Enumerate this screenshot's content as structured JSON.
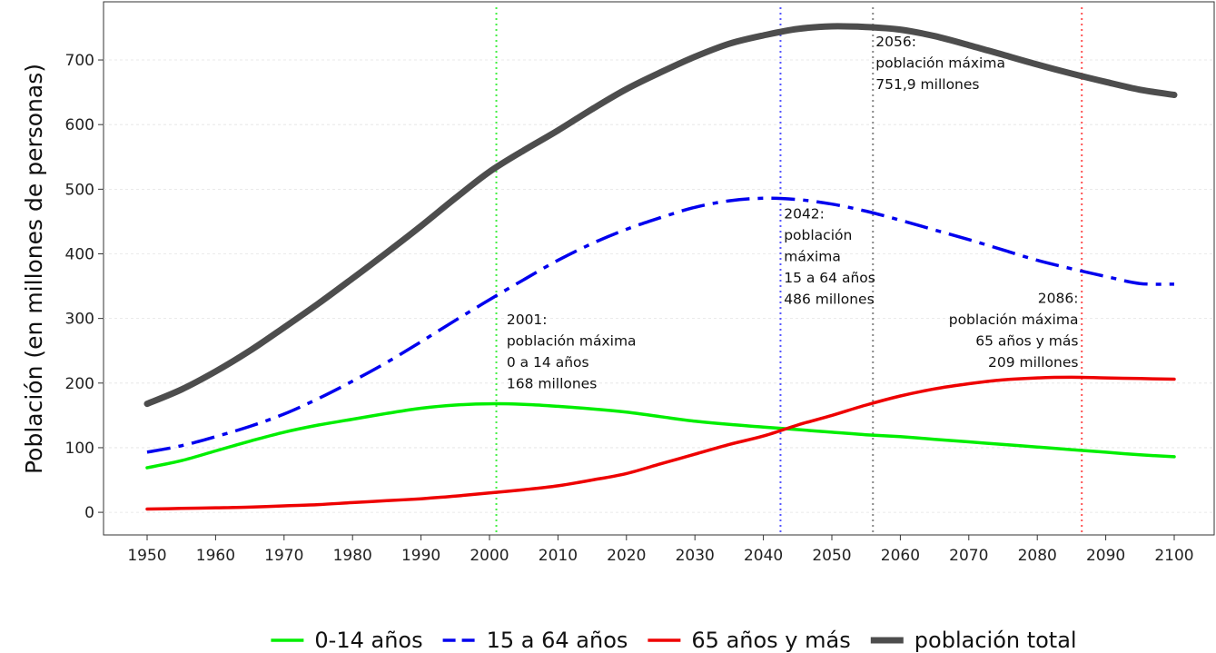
{
  "chart_data": {
    "type": "line",
    "title": "",
    "xlabel": "",
    "ylabel": "Población (en millones de personas)",
    "xlim": [
      1950,
      2100
    ],
    "ylim": [
      -35,
      790
    ],
    "x_ticks": [
      "1950",
      "1960",
      "1970",
      "1980",
      "1990",
      "2000",
      "2010",
      "2020",
      "2030",
      "2040",
      "2050",
      "2060",
      "2070",
      "2080",
      "2090",
      "2100"
    ],
    "y_ticks": [
      "0",
      "100",
      "200",
      "300",
      "400",
      "500",
      "600",
      "700"
    ],
    "grid": true,
    "legend_position": "bottom",
    "x": [
      1950,
      1955,
      1960,
      1965,
      1970,
      1975,
      1980,
      1985,
      1990,
      1995,
      2000,
      2005,
      2010,
      2015,
      2020,
      2025,
      2030,
      2035,
      2040,
      2045,
      2050,
      2055,
      2060,
      2065,
      2070,
      2075,
      2080,
      2085,
      2090,
      2095,
      2100
    ],
    "series": [
      {
        "name": "0-14 años",
        "color": "#00ee00",
        "dash": "solid",
        "values": [
          69,
          80,
          95,
          110,
          124,
          135,
          144,
          153,
          161,
          166,
          168,
          167,
          164,
          160,
          155,
          148,
          141,
          136,
          132,
          128,
          124,
          120,
          117,
          113,
          109,
          105,
          101,
          97,
          93,
          89,
          86
        ]
      },
      {
        "name": "15 a 64 años",
        "color": "#0000ee",
        "dash": "dashdot",
        "values": [
          93,
          103,
          117,
          133,
          152,
          176,
          203,
          232,
          264,
          297,
          329,
          360,
          390,
          416,
          438,
          456,
          472,
          482,
          486,
          484,
          477,
          466,
          452,
          437,
          422,
          406,
          390,
          377,
          365,
          354,
          353
        ]
      },
      {
        "name": "65 años y más",
        "color": "#ee0000",
        "dash": "solid",
        "values": [
          5,
          6,
          7,
          8,
          10,
          12,
          15,
          18,
          21,
          25,
          30,
          35,
          41,
          50,
          60,
          75,
          90,
          105,
          118,
          135,
          150,
          166,
          180,
          191,
          199,
          205,
          208,
          209,
          208,
          207,
          206
        ]
      },
      {
        "name": "población total",
        "color": "#4d4d4d",
        "dash": "solid",
        "values": [
          168,
          190,
          218,
          250,
          286,
          323,
          362,
          402,
          443,
          486,
          527,
          560,
          591,
          624,
          655,
          681,
          705,
          725,
          738,
          748,
          752,
          751,
          747,
          737,
          723,
          708,
          693,
          679,
          666,
          654,
          646
        ]
      }
    ],
    "vlines": [
      {
        "x": 2001,
        "color": "#44ee44"
      },
      {
        "x": 2042.5,
        "color": "#5555ff"
      },
      {
        "x": 2056,
        "color": "#888888"
      },
      {
        "x": 2086.5,
        "color": "#ff5555"
      }
    ],
    "annotations": [
      {
        "x": 2002.5,
        "y": 291,
        "anchor": "start",
        "lines": [
          "2001:",
          "población máxima",
          "0 a 14 años",
          "168 millones"
        ]
      },
      {
        "x": 2043,
        "y": 455,
        "anchor": "start",
        "lines": [
          "2042:",
          "población",
          "máxima",
          "15 a 64 años",
          "486 millones"
        ]
      },
      {
        "x": 2056.4,
        "y": 721,
        "anchor": "start",
        "lines": [
          "2056:",
          "población máxima",
          "751,9 millones"
        ]
      },
      {
        "x": 2086,
        "y": 324,
        "anchor": "end",
        "lines": [
          "2086:",
          "población máxima",
          "65 años y más",
          "209 millones"
        ]
      }
    ]
  }
}
